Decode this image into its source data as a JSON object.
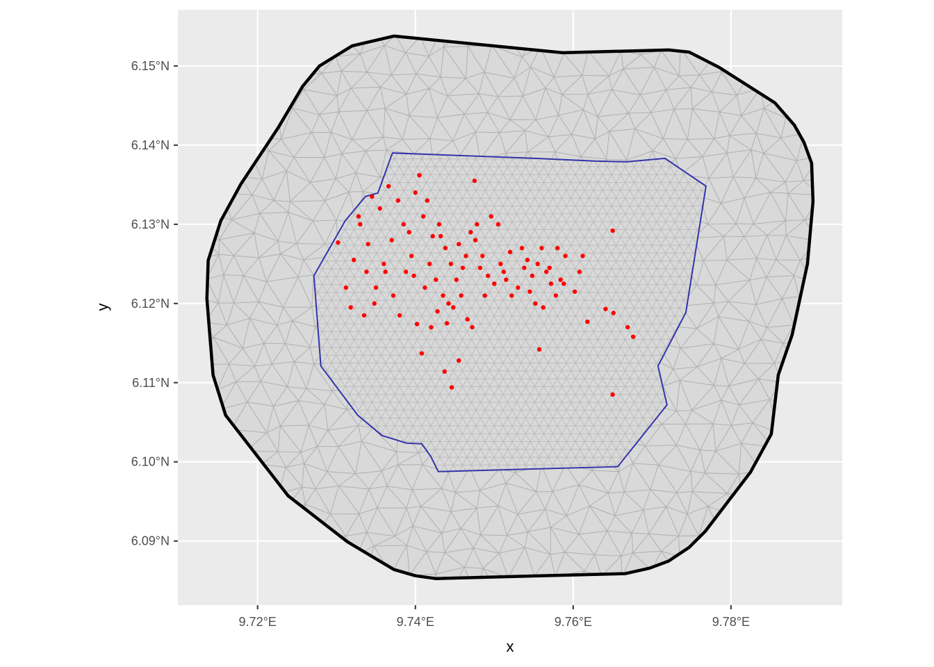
{
  "chart_data": {
    "type": "scatter",
    "xlabel": "x",
    "ylabel": "y",
    "xlim": [
      9.7099,
      9.7941
    ],
    "ylim": [
      6.0819,
      6.1571
    ],
    "xticks": [
      {
        "value": 9.72,
        "label": "9.72°E"
      },
      {
        "value": 9.74,
        "label": "9.74°E"
      },
      {
        "value": 9.76,
        "label": "9.76°E"
      },
      {
        "value": 9.78,
        "label": "9.78°E"
      }
    ],
    "yticks": [
      {
        "value": 6.09,
        "label": "6.09°N"
      },
      {
        "value": 6.1,
        "label": "6.10°N"
      },
      {
        "value": 6.11,
        "label": "6.11°N"
      },
      {
        "value": 6.12,
        "label": "6.12°N"
      },
      {
        "value": 6.13,
        "label": "6.13°N"
      },
      {
        "value": 6.14,
        "label": "6.14°N"
      },
      {
        "value": 6.15,
        "label": "6.15°N"
      }
    ],
    "grid": true,
    "color": "#ff0000",
    "x": [
      9.765,
      9.765,
      9.7676,
      9.7669,
      9.7651,
      9.7641,
      9.7618,
      9.7557,
      9.7446,
      9.7437,
      9.7455,
      9.7408,
      9.7402,
      9.7302,
      9.7475,
      9.7405,
      9.7366,
      9.7345,
      9.733,
      9.7322,
      9.7338,
      9.735,
      9.7312,
      9.7318,
      9.7335,
      9.7348,
      9.7362,
      9.734,
      9.7328,
      9.7355,
      9.737,
      9.7385,
      9.7378,
      9.7392,
      9.74,
      9.741,
      9.7395,
      9.7388,
      9.7372,
      9.736,
      9.7415,
      9.7422,
      9.743,
      9.7418,
      9.7426,
      9.7438,
      9.7445,
      9.7452,
      9.7435,
      9.7428,
      9.742,
      9.7442,
      9.7448,
      9.7458,
      9.7466,
      9.7472,
      9.746,
      9.744,
      9.7455,
      9.747,
      9.7478,
      9.7485,
      9.7492,
      9.75,
      9.7508,
      9.7515,
      9.7522,
      9.753,
      9.7496,
      9.7505,
      9.7512,
      9.752,
      9.7535,
      9.7542,
      9.7548,
      9.7555,
      9.756,
      9.7566,
      9.7572,
      9.7578,
      9.7584,
      9.759,
      9.7545,
      9.7552,
      9.7538,
      9.7562,
      9.757,
      9.758,
      9.7588,
      9.7602,
      9.7612,
      9.7608,
      9.7488,
      9.7482,
      9.7476,
      9.7464,
      9.7432,
      9.7412,
      9.7398,
      9.738
    ],
    "y": [
      6.1292,
      6.1085,
      6.1158,
      6.117,
      6.1188,
      6.1193,
      6.1177,
      6.1142,
      6.1094,
      6.1114,
      6.1128,
      6.1137,
      6.1174,
      6.1277,
      6.1355,
      6.1362,
      6.1348,
      6.1335,
      6.13,
      6.1255,
      6.124,
      6.122,
      6.122,
      6.1195,
      6.1185,
      6.12,
      6.124,
      6.1275,
      6.131,
      6.132,
      6.128,
      6.13,
      6.133,
      6.129,
      6.134,
      6.131,
      6.126,
      6.124,
      6.121,
      6.125,
      6.133,
      6.1285,
      6.13,
      6.125,
      6.123,
      6.127,
      6.125,
      6.123,
      6.121,
      6.119,
      6.117,
      6.12,
      6.1195,
      6.121,
      6.118,
      6.117,
      6.1245,
      6.1175,
      6.1275,
      6.129,
      6.13,
      6.126,
      6.1235,
      6.1225,
      6.125,
      6.123,
      6.121,
      6.122,
      6.131,
      6.13,
      6.124,
      6.1265,
      6.127,
      6.1255,
      6.1235,
      6.125,
      6.127,
      6.124,
      6.1225,
      6.121,
      6.123,
      6.126,
      6.1215,
      6.12,
      6.1245,
      6.1195,
      6.1245,
      6.127,
      6.1225,
      6.1215,
      6.126,
      6.124,
      6.121,
      6.1245,
      6.128,
      6.126,
      6.1285,
      6.122,
      6.1235,
      6.1185
    ],
    "outer_boundary": {
      "color": "#000000",
      "x": [
        9.73727,
        9.73198,
        9.72784,
        9.72573,
        9.72256,
        9.71789,
        9.71533,
        9.71374,
        9.71357,
        9.71436,
        9.71595,
        9.72388,
        9.73137,
        9.73727,
        9.74,
        9.74256,
        9.76661,
        9.76969,
        9.77207,
        9.77471,
        9.77674,
        9.78246,
        9.78511,
        9.78599,
        9.78775,
        9.78969,
        9.79039,
        9.79022,
        9.78925,
        9.78801,
        9.78555,
        9.7785,
        9.77471,
        9.77207,
        9.75867
      ],
      "y": [
        6.15377,
        6.15254,
        6.15,
        6.14746,
        6.14211,
        6.13509,
        6.13044,
        6.12544,
        6.12061,
        6.11096,
        6.10588,
        6.0957,
        6.08991,
        6.0864,
        6.08561,
        6.08526,
        6.08588,
        6.08658,
        6.08746,
        6.08921,
        6.09123,
        6.09868,
        6.10351,
        6.11096,
        6.11605,
        6.125,
        6.1329,
        6.13772,
        6.14035,
        6.14254,
        6.14535,
        6.14982,
        6.15175,
        6.15202,
        6.15167
      ]
    },
    "inner_boundary": {
      "color": "#3333aa",
      "x": [
        9.73709,
        9.73524,
        9.73366,
        9.7311,
        9.72714,
        9.72802,
        9.73269,
        9.73577,
        9.73885,
        9.74079,
        9.74194,
        9.7429,
        9.76563,
        9.77189,
        9.77074,
        9.77427,
        9.77683,
        9.77163,
        9.76678,
        9.76282,
        9.75515
      ],
      "y": [
        6.13901,
        6.13395,
        6.13351,
        6.13044,
        6.12351,
        6.1121,
        6.10588,
        6.10333,
        6.10237,
        6.10228,
        6.1007,
        6.09877,
        6.09939,
        6.10719,
        6.1121,
        6.11886,
        6.13482,
        6.13833,
        6.13789,
        6.13798,
        6.13833
      ]
    }
  }
}
